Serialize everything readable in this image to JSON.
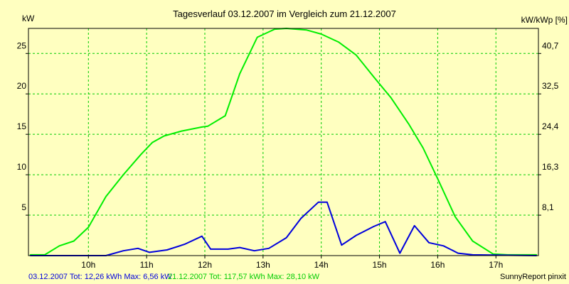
{
  "chart_data": {
    "type": "line",
    "title": "Tagesverlauf 03.12.2007 im Vergleich zum 21.12.2007",
    "ylabel_left": "kW",
    "ylabel_right": "kW/kWp [%]",
    "x_tick_labels": [
      "10h",
      "11h",
      "12h",
      "13h",
      "14h",
      "15h",
      "16h",
      "17h"
    ],
    "x_tick_hours": [
      10,
      11,
      12,
      13,
      14,
      15,
      16,
      17
    ],
    "xlim": [
      8.97,
      17.73
    ],
    "ylim": [
      0,
      28.1
    ],
    "y_ticks_left": [
      "5",
      "10",
      "15",
      "20",
      "25"
    ],
    "y_ticks_left_values": [
      5,
      10,
      15,
      20,
      25
    ],
    "y_ticks_right": [
      "8,1",
      "16,3",
      "24,4",
      "32,5",
      "40,7"
    ],
    "grid": true,
    "series": [
      {
        "name": "21.12.2007",
        "color": "#00ee00",
        "x": [
          9.0,
          9.25,
          9.5,
          9.75,
          10.0,
          10.3,
          10.6,
          10.9,
          11.1,
          11.3,
          11.6,
          11.95,
          12.05,
          12.35,
          12.6,
          12.9,
          13.2,
          13.4,
          13.75,
          14.0,
          14.3,
          14.6,
          14.9,
          15.2,
          15.5,
          15.75,
          16.0,
          16.3,
          16.6,
          16.95,
          17.2,
          17.5,
          17.7
        ],
        "values": [
          0.1,
          0.1,
          1.2,
          1.8,
          3.5,
          7.3,
          10.0,
          12.5,
          14.0,
          14.8,
          15.4,
          15.9,
          16.0,
          17.3,
          22.5,
          27.0,
          28.0,
          28.1,
          27.9,
          27.4,
          26.4,
          24.8,
          22.1,
          19.5,
          16.3,
          13.3,
          9.5,
          4.8,
          1.8,
          0.2,
          0.1,
          0.1,
          0.1
        ],
        "footer": "21.12.2007 Tot: 117,57 kWh Max: 28,10 kW"
      },
      {
        "name": "03.12.2007",
        "color": "#0000dd",
        "x": [
          9.0,
          10.0,
          10.3,
          10.6,
          10.85,
          11.05,
          11.35,
          11.65,
          11.95,
          12.1,
          12.4,
          12.6,
          12.85,
          13.1,
          13.4,
          13.65,
          13.95,
          14.1,
          14.35,
          14.6,
          14.9,
          15.1,
          15.35,
          15.6,
          15.85,
          16.1,
          16.35,
          16.6,
          17.7
        ],
        "values": [
          0.0,
          0.0,
          0.0,
          0.6,
          0.9,
          0.4,
          0.7,
          1.4,
          2.4,
          0.8,
          0.8,
          1.0,
          0.6,
          0.9,
          2.2,
          4.6,
          6.6,
          6.6,
          1.3,
          2.5,
          3.6,
          4.2,
          0.3,
          3.7,
          1.6,
          1.2,
          0.3,
          0.1,
          0.0
        ],
        "footer": "03.12.2007 Tot: 12,26 kWh Max: 6,56 kW"
      }
    ],
    "credit": "SunnyReport pinxit"
  },
  "colors": {
    "background": "#ffffc0",
    "grid": "#00cc00",
    "axis": "#000000"
  }
}
